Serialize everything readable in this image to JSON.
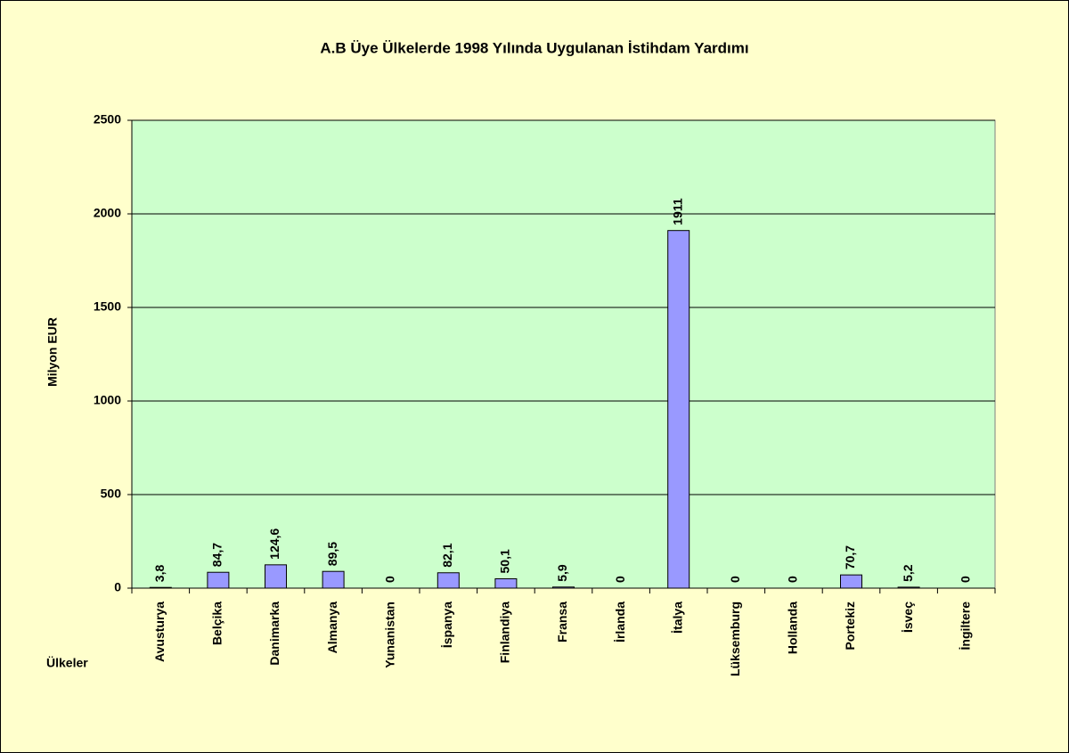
{
  "chart_data": {
    "type": "bar",
    "title": "A.B Üye Ülkelerde 1998 Yılında Uygulanan İstihdam Yardımı",
    "y_label": "Milyon EUR",
    "x_label": "Ülkeler",
    "categories": [
      "Avusturya",
      "Belçika",
      "Danimarka",
      "Almanya",
      "Yunanistan",
      "İspanya",
      "Finlandiya",
      "Fransa",
      "İrlanda",
      "İtalya",
      "Lüksemburg",
      "Hollanda",
      "Portekiz",
      "İsveç",
      "İngiltere"
    ],
    "values": [
      3.8,
      84.7,
      124.6,
      89.5,
      0,
      82.1,
      50.1,
      5.9,
      0,
      1911,
      0,
      0,
      70.7,
      5.2,
      0
    ],
    "value_labels": [
      "3,8",
      "84,7",
      "124,6",
      "89,5",
      "0",
      "82,1",
      "50,1",
      "5,9",
      "0",
      "1911",
      "0",
      "0",
      "70,7",
      "5,2",
      "0"
    ],
    "color": "#9999ff",
    "ylim": [
      0,
      2500
    ],
    "yticks": [
      0,
      500,
      1000,
      1500,
      2000,
      2500
    ],
    "grid": true
  }
}
